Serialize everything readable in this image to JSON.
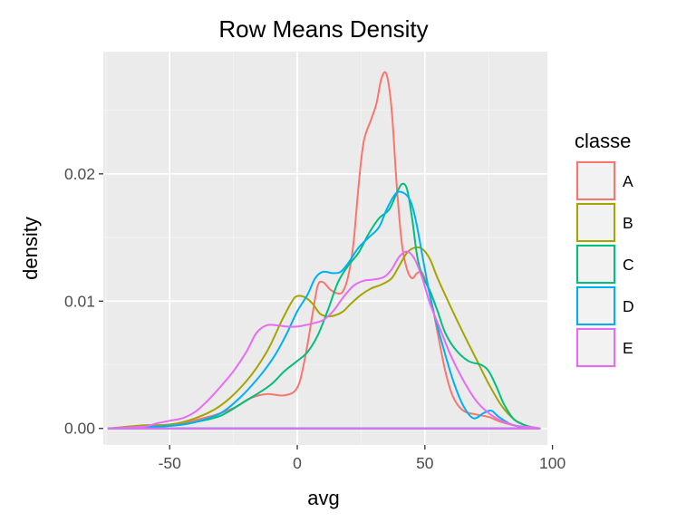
{
  "chart_data": {
    "type": "line",
    "title": "Row Means Density",
    "xlabel": "avg",
    "ylabel": "density",
    "xlim": [
      -76,
      98
    ],
    "ylim": [
      -0.0013,
      0.0296
    ],
    "x_ticks": [
      -50,
      0,
      50,
      100
    ],
    "x_tick_labels": [
      "-50",
      "0",
      "50",
      "100"
    ],
    "y_ticks": [
      0.0,
      0.01,
      0.02
    ],
    "y_tick_labels": [
      "0.00",
      "0.01",
      "0.02"
    ],
    "grid": true,
    "background": "#ebebeb",
    "legend": {
      "title": "classe",
      "position": "right"
    },
    "series": [
      {
        "name": "A",
        "color": "#F8766D",
        "points": [
          [
            -74,
            0.0
          ],
          [
            -50,
            0.0003
          ],
          [
            -35,
            0.0009
          ],
          [
            -25,
            0.0016
          ],
          [
            -18,
            0.0024
          ],
          [
            -12,
            0.0027
          ],
          [
            -5,
            0.0026
          ],
          [
            0,
            0.0032
          ],
          [
            3,
            0.0055
          ],
          [
            6,
            0.009
          ],
          [
            8,
            0.0112
          ],
          [
            10,
            0.0115
          ],
          [
            13,
            0.0109
          ],
          [
            16,
            0.0106
          ],
          [
            18,
            0.0108
          ],
          [
            20,
            0.012
          ],
          [
            22,
            0.0145
          ],
          [
            24,
            0.019
          ],
          [
            26,
            0.0225
          ],
          [
            29,
            0.0243
          ],
          [
            31,
            0.0255
          ],
          [
            33,
            0.0275
          ],
          [
            35,
            0.0278
          ],
          [
            37,
            0.025
          ],
          [
            39,
            0.019
          ],
          [
            41,
            0.0145
          ],
          [
            43,
            0.0125
          ],
          [
            45,
            0.0118
          ],
          [
            47,
            0.0122
          ],
          [
            49,
            0.0122
          ],
          [
            52,
            0.0105
          ],
          [
            55,
            0.0075
          ],
          [
            58,
            0.0045
          ],
          [
            61,
            0.0025
          ],
          [
            65,
            0.0014
          ],
          [
            70,
            0.0011
          ],
          [
            75,
            0.0009
          ],
          [
            80,
            0.0005
          ],
          [
            88,
            0.0001
          ],
          [
            95,
            0.0
          ]
        ]
      },
      {
        "name": "B",
        "color": "#A3A500",
        "points": [
          [
            -74,
            0.0
          ],
          [
            -60,
            0.00025
          ],
          [
            -50,
            0.0003
          ],
          [
            -40,
            0.0008
          ],
          [
            -30,
            0.0018
          ],
          [
            -20,
            0.0037
          ],
          [
            -12,
            0.006
          ],
          [
            -6,
            0.0085
          ],
          [
            -2,
            0.01
          ],
          [
            0,
            0.0104
          ],
          [
            3,
            0.0103
          ],
          [
            6,
            0.0098
          ],
          [
            9,
            0.009
          ],
          [
            12,
            0.0088
          ],
          [
            15,
            0.0089
          ],
          [
            18,
            0.0092
          ],
          [
            21,
            0.0098
          ],
          [
            25,
            0.0105
          ],
          [
            29,
            0.011
          ],
          [
            33,
            0.0113
          ],
          [
            37,
            0.0118
          ],
          [
            40,
            0.0128
          ],
          [
            43,
            0.0138
          ],
          [
            46,
            0.0142
          ],
          [
            49,
            0.0141
          ],
          [
            52,
            0.0133
          ],
          [
            55,
            0.0118
          ],
          [
            60,
            0.0096
          ],
          [
            65,
            0.0075
          ],
          [
            70,
            0.0055
          ],
          [
            75,
            0.0035
          ],
          [
            80,
            0.0018
          ],
          [
            85,
            0.0007
          ],
          [
            90,
            0.0002
          ],
          [
            95,
            0.0
          ]
        ]
      },
      {
        "name": "C",
        "color": "#00BF7D",
        "points": [
          [
            -74,
            0.0
          ],
          [
            -50,
            0.0002
          ],
          [
            -40,
            0.0005
          ],
          [
            -30,
            0.001
          ],
          [
            -20,
            0.0022
          ],
          [
            -15,
            0.0028
          ],
          [
            -10,
            0.0035
          ],
          [
            -5,
            0.0045
          ],
          [
            0,
            0.0053
          ],
          [
            4,
            0.006
          ],
          [
            8,
            0.0073
          ],
          [
            12,
            0.0093
          ],
          [
            16,
            0.0115
          ],
          [
            20,
            0.0128
          ],
          [
            24,
            0.0138
          ],
          [
            28,
            0.0153
          ],
          [
            32,
            0.0165
          ],
          [
            36,
            0.0172
          ],
          [
            39,
            0.0185
          ],
          [
            41,
            0.0192
          ],
          [
            43,
            0.0188
          ],
          [
            45,
            0.0165
          ],
          [
            47,
            0.0135
          ],
          [
            49,
            0.012
          ],
          [
            52,
            0.0108
          ],
          [
            55,
            0.0092
          ],
          [
            58,
            0.0075
          ],
          [
            62,
            0.0062
          ],
          [
            67,
            0.0053
          ],
          [
            72,
            0.005
          ],
          [
            75,
            0.0045
          ],
          [
            78,
            0.0033
          ],
          [
            81,
            0.0019
          ],
          [
            85,
            0.0007
          ],
          [
            90,
            0.0002
          ],
          [
            95,
            0.0
          ]
        ]
      },
      {
        "name": "D",
        "color": "#00B0F6",
        "points": [
          [
            -74,
            0.0
          ],
          [
            -50,
            0.0002
          ],
          [
            -40,
            0.0005
          ],
          [
            -30,
            0.0012
          ],
          [
            -22,
            0.0025
          ],
          [
            -16,
            0.0038
          ],
          [
            -12,
            0.0048
          ],
          [
            -8,
            0.006
          ],
          [
            -4,
            0.0075
          ],
          [
            0,
            0.0092
          ],
          [
            4,
            0.0105
          ],
          [
            7,
            0.0118
          ],
          [
            10,
            0.0123
          ],
          [
            14,
            0.0122
          ],
          [
            17,
            0.0123
          ],
          [
            20,
            0.013
          ],
          [
            24,
            0.0142
          ],
          [
            28,
            0.015
          ],
          [
            32,
            0.0158
          ],
          [
            35,
            0.0172
          ],
          [
            38,
            0.0183
          ],
          [
            40,
            0.0186
          ],
          [
            43,
            0.0183
          ],
          [
            45,
            0.0175
          ],
          [
            47,
            0.0158
          ],
          [
            50,
            0.0125
          ],
          [
            53,
            0.0095
          ],
          [
            57,
            0.0065
          ],
          [
            61,
            0.0038
          ],
          [
            65,
            0.0018
          ],
          [
            69,
            0.0008
          ],
          [
            73,
            0.0012
          ],
          [
            76,
            0.0014
          ],
          [
            79,
            0.0009
          ],
          [
            84,
            0.0003
          ],
          [
            90,
            0.0001
          ],
          [
            95,
            0.0
          ]
        ]
      },
      {
        "name": "E",
        "color": "#E76BF3",
        "points": [
          [
            -74,
            0.0
          ],
          [
            -60,
            0.00015
          ],
          [
            -55,
            0.0004
          ],
          [
            -50,
            0.0006
          ],
          [
            -45,
            0.0008
          ],
          [
            -40,
            0.0013
          ],
          [
            -35,
            0.0022
          ],
          [
            -30,
            0.0033
          ],
          [
            -25,
            0.0045
          ],
          [
            -20,
            0.006
          ],
          [
            -16,
            0.0075
          ],
          [
            -12,
            0.0081
          ],
          [
            -8,
            0.0081
          ],
          [
            -4,
            0.008
          ],
          [
            0,
            0.008
          ],
          [
            5,
            0.0082
          ],
          [
            10,
            0.0085
          ],
          [
            14,
            0.0092
          ],
          [
            18,
            0.0103
          ],
          [
            22,
            0.0112
          ],
          [
            26,
            0.0116
          ],
          [
            30,
            0.0117
          ],
          [
            34,
            0.0119
          ],
          [
            37,
            0.0125
          ],
          [
            40,
            0.0135
          ],
          [
            43,
            0.0139
          ],
          [
            46,
            0.0133
          ],
          [
            49,
            0.0118
          ],
          [
            52,
            0.0098
          ],
          [
            56,
            0.0078
          ],
          [
            60,
            0.0058
          ],
          [
            65,
            0.0038
          ],
          [
            70,
            0.0022
          ],
          [
            75,
            0.0012
          ],
          [
            80,
            0.0006
          ],
          [
            86,
            0.0002
          ],
          [
            92,
            0.0001
          ],
          [
            95,
            0.0
          ]
        ]
      }
    ]
  }
}
